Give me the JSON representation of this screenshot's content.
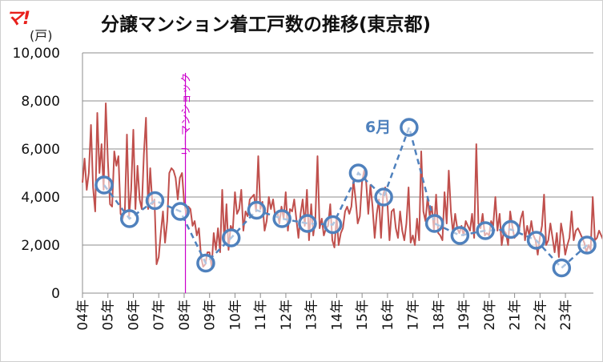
{
  "logo": "マ!",
  "chart_data": {
    "type": "line",
    "title": "分譲マンション着工戸数の推移(東京都)",
    "ylabel": "(戸)",
    "ylim": [
      0,
      10000
    ],
    "yticks": [
      0,
      2000,
      4000,
      6000,
      8000,
      10000
    ],
    "ytick_labels": [
      "0",
      "2,000",
      "4,000",
      "6,000",
      "8,000",
      "10,000"
    ],
    "xlim": [
      2004,
      2024.1
    ],
    "xticks": [
      2004,
      2005,
      2006,
      2007,
      2008,
      2009,
      2010,
      2011,
      2012,
      2013,
      2014,
      2015,
      2016,
      2017,
      2018,
      2019,
      2020,
      2021,
      2022,
      2023
    ],
    "xtick_labels": [
      "04年",
      "05年",
      "06年",
      "07年",
      "08年",
      "09年",
      "10年",
      "11年",
      "12年",
      "13年",
      "14年",
      "15年",
      "16年",
      "17年",
      "18年",
      "19年",
      "20年",
      "21年",
      "22年",
      "23年"
    ],
    "grid": "horizontal",
    "colors": {
      "monthly": "#c0504d",
      "june": "#4f81bd",
      "event": "#cc00cc"
    },
    "series": [
      {
        "name": "",
        "style": "solid",
        "x_start": 2004.0,
        "x_step": 0.0833,
        "values": [
          4600,
          5600,
          4300,
          5000,
          7000,
          4400,
          3400,
          7500,
          5000,
          6200,
          4300,
          7900,
          5500,
          3700,
          3600,
          5900,
          5300,
          5700,
          3300,
          3100,
          3400,
          6600,
          3200,
          4300,
          6800,
          3500,
          5300,
          3900,
          3500,
          5800,
          7300,
          3500,
          5200,
          3700,
          3900,
          1200,
          1500,
          2500,
          3400,
          2100,
          3000,
          5000,
          5200,
          5100,
          4800,
          3900,
          4800,
          5000,
          3800,
          3300,
          3600,
          3500,
          2800,
          3000,
          2400,
          2700,
          1500,
          1100,
          1200,
          1700,
          1700,
          1100,
          2500,
          1800,
          2700,
          1700,
          4300,
          2100,
          3700,
          1800,
          2800,
          2600,
          4200,
          3300,
          3500,
          4300,
          2600,
          3400,
          3200,
          3900,
          4000,
          4100,
          3400,
          5700,
          3500,
          3800,
          2600,
          3000,
          4000,
          3500,
          3900,
          3200,
          3400,
          2900,
          3600,
          3100,
          4200,
          2600,
          3500,
          3400,
          3900,
          3100,
          2300,
          3300,
          3900,
          2800,
          4300,
          2200,
          3700,
          2400,
          3100,
          5700,
          2700,
          3100,
          2400,
          2700,
          2800,
          3700,
          2200,
          1900,
          3200,
          2000,
          2500,
          2700,
          3400,
          3600,
          3300,
          3600,
          4700,
          3900,
          2900,
          3200,
          4600,
          5100,
          4600,
          3300,
          4500,
          3600,
          2300,
          3300,
          3900,
          2300,
          4100,
          4400,
          3800,
          2200,
          3400,
          3500,
          2700,
          2300,
          3400,
          2600,
          2200,
          2900,
          4400,
          2100,
          2400,
          2000,
          3100,
          2200,
          5900,
          3400,
          3000,
          4000,
          3200,
          3600,
          2600,
          4100,
          2500,
          2400,
          2200,
          4200,
          2900,
          5100,
          3400,
          2500,
          3300,
          2700,
          2500,
          2800,
          2400,
          3000,
          2800,
          2600,
          3300,
          2300,
          6200,
          2900,
          2700,
          3300,
          2400,
          2500,
          2400,
          3000,
          2800,
          4000,
          2600,
          3300,
          2000,
          2600,
          2500,
          2000,
          3400,
          2800,
          2300,
          2400,
          2500,
          3100,
          3400,
          2200,
          2800,
          2400,
          3000,
          2400,
          2200,
          1600,
          2300,
          2800,
          4100,
          2000,
          2200,
          2900,
          2300,
          1700,
          2500,
          1500,
          2900,
          2400,
          1600,
          2000,
          2300,
          3400,
          2200,
          2600,
          2700,
          2500,
          2300,
          2100,
          1700,
          2000,
          1800,
          4000,
          2200,
          2300,
          2600,
          2400,
          2200,
          1600,
          2400,
          2000,
          1400,
          1600,
          2500,
          1600,
          1400,
          2000,
          2100,
          2500,
          3200,
          2000,
          2300,
          2400,
          2300
        ]
      },
      {
        "name": "6月",
        "style": "dashed-markers",
        "x": [
          2004.85,
          2005.85,
          2006.85,
          2007.85,
          2008.85,
          2009.85,
          2010.85,
          2011.85,
          2012.85,
          2013.85,
          2014.85,
          2015.85,
          2016.85,
          2017.85,
          2018.85,
          2019.85,
          2020.85,
          2021.85,
          2022.85,
          2023.85
        ],
        "values": [
          4500,
          3100,
          3850,
          3400,
          1250,
          2300,
          3450,
          3100,
          2900,
          2850,
          5000,
          4000,
          6900,
          2900,
          2400,
          2600,
          2650,
          2200,
          1050,
          2000
        ]
      }
    ],
    "annotations": [
      {
        "text": "6月",
        "x": 2016.2,
        "y": 6900
      },
      {
        "text": "リーマンショック",
        "x": 2008.05,
        "vertical_line": true
      }
    ]
  }
}
